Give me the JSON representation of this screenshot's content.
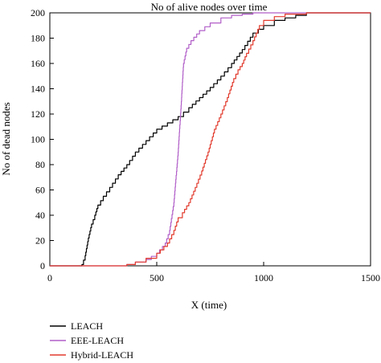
{
  "chart_data": {
    "type": "line",
    "title": "No of alive nodes over time",
    "xlabel": "X (time)",
    "ylabel": "No of dead nodes",
    "xlim": [
      0,
      1500
    ],
    "ylim": [
      0,
      200
    ],
    "x_ticks": [
      0,
      500,
      1000,
      1500
    ],
    "y_ticks": [
      0,
      20,
      40,
      60,
      80,
      100,
      120,
      140,
      160,
      180,
      200
    ],
    "grid": false,
    "legend_position": "bottom-left",
    "series": [
      {
        "name": "LEACH",
        "color": "#000000",
        "points": [
          [
            0,
            0
          ],
          [
            140,
            0
          ],
          [
            150,
            1
          ],
          [
            165,
            8
          ],
          [
            180,
            22
          ],
          [
            195,
            33
          ],
          [
            210,
            40
          ],
          [
            225,
            48
          ],
          [
            250,
            55
          ],
          [
            280,
            62
          ],
          [
            320,
            72
          ],
          [
            360,
            80
          ],
          [
            400,
            90
          ],
          [
            450,
            99
          ],
          [
            500,
            108
          ],
          [
            550,
            113
          ],
          [
            600,
            118
          ],
          [
            650,
            125
          ],
          [
            700,
            133
          ],
          [
            750,
            141
          ],
          [
            800,
            150
          ],
          [
            850,
            160
          ],
          [
            900,
            171
          ],
          [
            950,
            184
          ],
          [
            1000,
            190
          ],
          [
            1050,
            194
          ],
          [
            1100,
            196
          ],
          [
            1150,
            198
          ],
          [
            1200,
            200
          ],
          [
            1500,
            200
          ]
        ]
      },
      {
        "name": "EEE-LEACH",
        "color": "#b15fc8",
        "points": [
          [
            0,
            0
          ],
          [
            330,
            0
          ],
          [
            360,
            1
          ],
          [
            400,
            3
          ],
          [
            450,
            5
          ],
          [
            500,
            10
          ],
          [
            540,
            18
          ],
          [
            560,
            28
          ],
          [
            580,
            50
          ],
          [
            600,
            90
          ],
          [
            615,
            130
          ],
          [
            625,
            160
          ],
          [
            640,
            172
          ],
          [
            660,
            178
          ],
          [
            700,
            186
          ],
          [
            750,
            192
          ],
          [
            800,
            196
          ],
          [
            850,
            198
          ],
          [
            900,
            199
          ],
          [
            950,
            200
          ],
          [
            1500,
            200
          ]
        ]
      },
      {
        "name": "Hybrid-LEACH",
        "color": "#e23b2e",
        "points": [
          [
            0,
            0
          ],
          [
            330,
            0
          ],
          [
            360,
            1
          ],
          [
            400,
            3
          ],
          [
            450,
            6
          ],
          [
            500,
            10
          ],
          [
            550,
            18
          ],
          [
            580,
            28
          ],
          [
            600,
            38
          ],
          [
            620,
            42
          ],
          [
            650,
            50
          ],
          [
            680,
            62
          ],
          [
            710,
            75
          ],
          [
            740,
            90
          ],
          [
            770,
            108
          ],
          [
            800,
            120
          ],
          [
            830,
            133
          ],
          [
            860,
            148
          ],
          [
            880,
            155
          ],
          [
            900,
            160
          ],
          [
            920,
            168
          ],
          [
            950,
            178
          ],
          [
            980,
            190
          ],
          [
            1000,
            194
          ],
          [
            1050,
            197
          ],
          [
            1100,
            199
          ],
          [
            1200,
            200
          ],
          [
            1500,
            200
          ]
        ]
      }
    ]
  }
}
